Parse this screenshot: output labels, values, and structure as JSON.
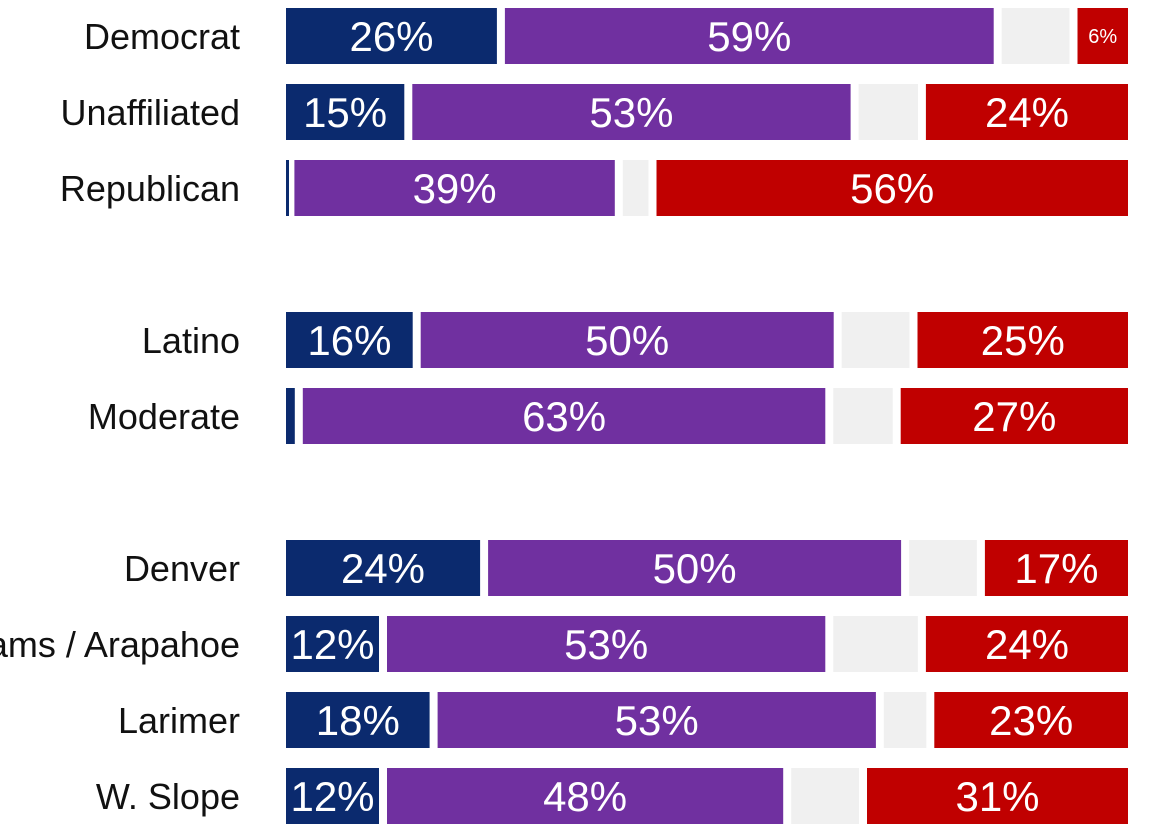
{
  "chart_data": {
    "type": "bar",
    "orientation": "horizontal",
    "stacked": true,
    "xlim": [
      0,
      100
    ],
    "segment_colors": [
      "#0b2a6e",
      "#7030a0",
      "#f0f0f0",
      "#c00000"
    ],
    "rows": [
      {
        "label": "Democrat",
        "values": [
          26,
          59,
          9,
          6
        ],
        "labels": [
          "26%",
          "59%",
          "",
          "6%"
        ]
      },
      {
        "label": "Unaffiliated",
        "values": [
          15,
          53,
          8,
          24
        ],
        "labels": [
          "15%",
          "53%",
          "",
          "24%"
        ]
      },
      {
        "label": "Republican",
        "values": [
          1,
          39,
          4,
          56
        ],
        "labels": [
          "",
          "39%",
          "",
          "56%"
        ]
      },
      {
        "label": "Latino",
        "values": [
          16,
          50,
          9,
          25
        ],
        "labels": [
          "16%",
          "50%",
          "",
          "25%"
        ]
      },
      {
        "label": "Moderate",
        "values": [
          2,
          63,
          8,
          27
        ],
        "labels": [
          "",
          "63%",
          "",
          "27%"
        ]
      },
      {
        "label": "Denver",
        "values": [
          24,
          50,
          9,
          17
        ],
        "labels": [
          "24%",
          "50%",
          "",
          "17%"
        ]
      },
      {
        "label": "Adams / Arapahoe",
        "values": [
          12,
          53,
          11,
          24
        ],
        "labels": [
          "12%",
          "53%",
          "",
          "24%"
        ]
      },
      {
        "label": "Larimer",
        "values": [
          18,
          53,
          6,
          23
        ],
        "labels": [
          "18%",
          "53%",
          "",
          "23%"
        ]
      },
      {
        "label": "W. Slope",
        "values": [
          12,
          48,
          9,
          31
        ],
        "labels": [
          "12%",
          "48%",
          "",
          "31%"
        ]
      }
    ]
  }
}
